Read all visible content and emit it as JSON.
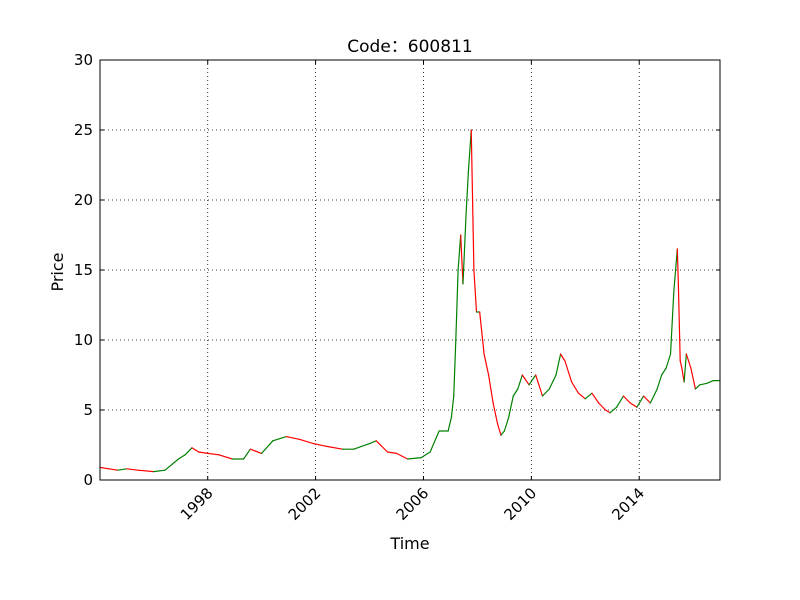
{
  "chart_data": {
    "type": "line",
    "title": "Code：600811",
    "xlabel": "Time",
    "ylabel": "Price",
    "xlim": [
      "1994-01-03",
      "2016-12-30"
    ],
    "ylim": [
      0,
      30
    ],
    "grid": true,
    "x_ticks": [
      "1998",
      "2002",
      "2006",
      "2010",
      "2014"
    ],
    "y_ticks": [
      "0",
      "5",
      "10",
      "15",
      "20",
      "25",
      "30"
    ],
    "colors": {
      "up": "#008000",
      "down": "#ff0000",
      "grid": "#000000"
    },
    "series": [
      {
        "x": [
          "1994-01-03",
          "1994-05-01",
          "1994-09-01",
          "1995-01-01",
          "1995-06-01",
          "1996-01-01",
          "1996-06-01",
          "1996-12-01",
          "1997-03-01",
          "1997-06-01",
          "1997-09-01",
          "1998-01-01",
          "1998-06-01",
          "1998-12-01",
          "1999-05-01",
          "1999-08-01",
          "2000-01-01",
          "2000-06-01",
          "2000-12-01",
          "2001-06-01",
          "2001-12-01",
          "2002-06-01",
          "2003-01-01",
          "2003-06-01",
          "2004-01-01",
          "2004-04-01",
          "2004-09-01",
          "2005-01-01",
          "2005-06-01",
          "2005-12-01",
          "2006-04-01",
          "2006-08-01",
          "2006-12-01",
          "2007-01-15",
          "2007-02-15",
          "2007-03-15",
          "2007-04-15",
          "2007-05-20",
          "2007-06-20",
          "2007-08-01",
          "2007-09-01",
          "2007-10-10",
          "2007-11-15",
          "2007-12-20",
          "2008-02-01",
          "2008-04-01",
          "2008-06-01",
          "2008-08-01",
          "2008-10-01",
          "2008-11-15",
          "2009-01-01",
          "2009-03-01",
          "2009-05-01",
          "2009-07-01",
          "2009-09-01",
          "2009-12-01",
          "2010-03-01",
          "2010-06-01",
          "2010-09-01",
          "2010-12-01",
          "2011-02-01",
          "2011-04-01",
          "2011-07-01",
          "2011-10-01",
          "2012-01-01",
          "2012-04-01",
          "2012-07-01",
          "2012-10-01",
          "2012-12-01",
          "2013-03-01",
          "2013-06-01",
          "2013-09-01",
          "2013-12-01",
          "2014-03-01",
          "2014-06-01",
          "2014-09-01",
          "2014-11-01",
          "2015-01-01",
          "2015-03-01",
          "2015-04-15",
          "2015-06-01",
          "2015-06-15",
          "2015-07-10",
          "2015-08-01",
          "2015-09-01",
          "2015-10-01",
          "2015-12-01",
          "2016-02-01",
          "2016-04-01",
          "2016-07-01",
          "2016-10-01",
          "2016-12-30"
        ],
        "values": [
          0.9,
          0.8,
          0.7,
          0.8,
          0.7,
          0.6,
          0.7,
          1.5,
          1.8,
          2.3,
          2.0,
          1.9,
          1.8,
          1.5,
          1.5,
          2.2,
          1.9,
          2.8,
          3.1,
          2.9,
          2.6,
          2.4,
          2.2,
          2.2,
          2.6,
          2.8,
          2.0,
          1.9,
          1.5,
          1.6,
          2.0,
          3.5,
          3.5,
          4.5,
          6.0,
          10.0,
          15.0,
          17.5,
          14.0,
          19.0,
          22.0,
          25.0,
          15.0,
          12.0,
          12.0,
          9.0,
          7.5,
          5.5,
          4.0,
          3.2,
          3.5,
          4.5,
          6.0,
          6.5,
          7.5,
          6.8,
          7.5,
          6.0,
          6.5,
          7.5,
          9.0,
          8.5,
          7.0,
          6.2,
          5.8,
          6.2,
          5.5,
          5.0,
          4.8,
          5.2,
          6.0,
          5.5,
          5.2,
          6.0,
          5.5,
          6.5,
          7.5,
          8.0,
          9.0,
          13.5,
          16.5,
          14.0,
          8.5,
          8.0,
          7.0,
          9.0,
          8.0,
          6.5,
          6.8,
          6.9,
          7.1,
          7.1
        ]
      }
    ]
  }
}
